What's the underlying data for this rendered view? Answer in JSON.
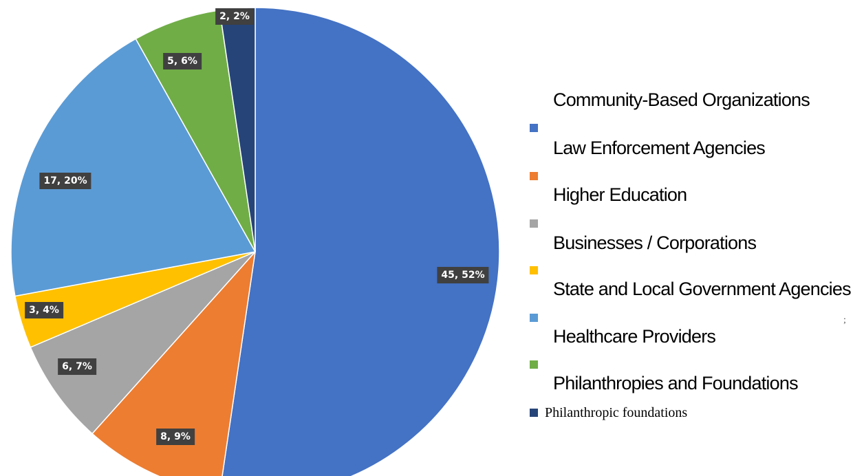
{
  "chart_data": {
    "type": "pie",
    "title": "",
    "legend_position": "right",
    "slices": [
      {
        "name": "Law Enforcement Agencies",
        "value": 45,
        "label": "45, 52%",
        "color": "#4472C4"
      },
      {
        "name": "Higher Education",
        "value": 8,
        "label": "8, 9%",
        "color": "#ED7D31"
      },
      {
        "name": "Businesses / Corporations",
        "value": 6,
        "label": "6, 7%",
        "color": "#A5A5A5"
      },
      {
        "name": "State and Local Government Agencies",
        "value": 3,
        "label": "3, 4%",
        "color": "#FFC000"
      },
      {
        "name": "Healthcare Providers",
        "value": 17,
        "label": "17, 20%",
        "color": "#5B9BD5"
      },
      {
        "name": "Philanthropies and Foundations",
        "value": 5,
        "label": "5, 6%",
        "color": "#70AD47"
      },
      {
        "name": "Philanthropic foundations",
        "value": 2,
        "label": "2, 2%",
        "color": "#264478"
      }
    ],
    "legend_heading": "Community-Based Organizations",
    "stray_mark": ";"
  }
}
